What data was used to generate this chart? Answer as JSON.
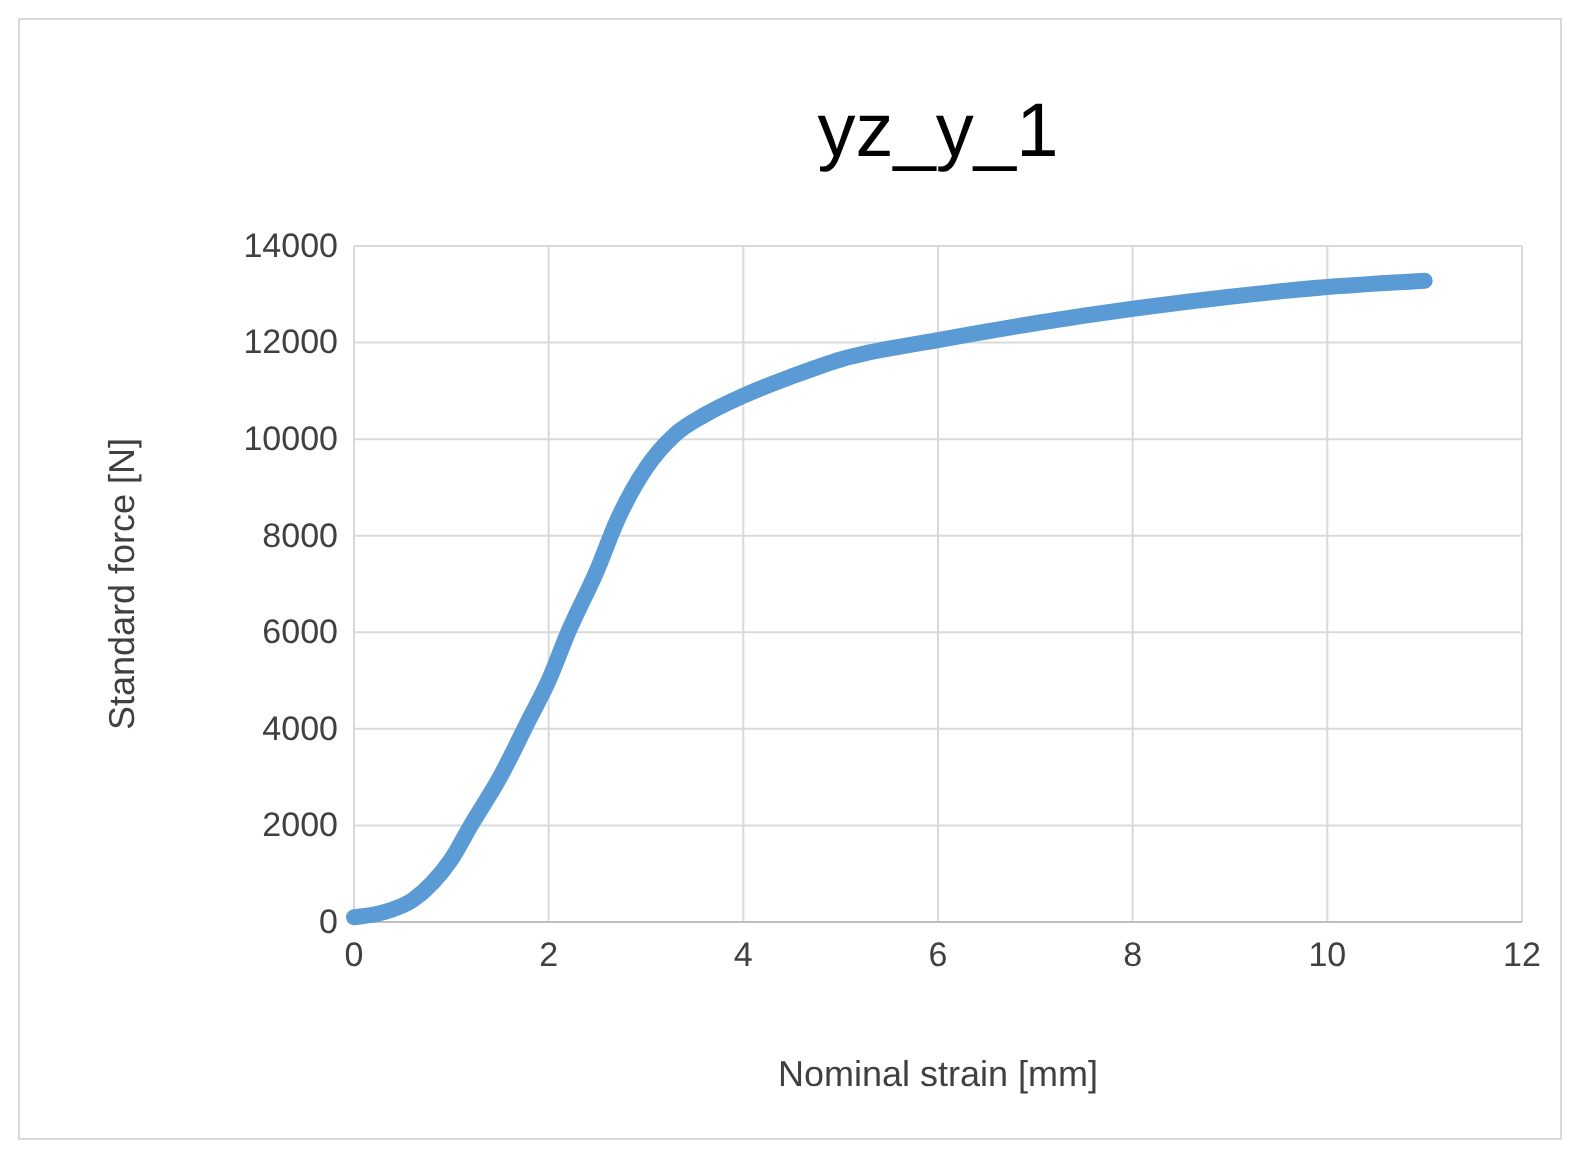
{
  "chart_data": {
    "type": "line",
    "title": "yz_y_1",
    "xlabel": "Nominal strain [mm]",
    "ylabel": "Standard force [N]",
    "x": [
      0,
      0.3,
      0.6,
      0.8,
      1,
      1.2,
      1.5,
      1.8,
      2,
      2.2,
      2.5,
      2.7,
      3,
      3.3,
      3.6,
      4,
      4.5,
      5,
      6,
      7,
      8,
      9,
      10,
      11
    ],
    "series": [
      {
        "color": "#5b9bd5",
        "values": [
          100,
          200,
          450,
          800,
          1300,
          2000,
          3000,
          4200,
          5000,
          6000,
          7300,
          8300,
          9400,
          10100,
          10500,
          10900,
          11300,
          11650,
          12050,
          12400,
          12700,
          12950,
          13150,
          13280
        ]
      }
    ],
    "xlim": [
      0,
      12
    ],
    "xticks": [
      0,
      2,
      4,
      6,
      8,
      10,
      12
    ],
    "ylim": [
      0,
      14000
    ],
    "yticks": [
      0,
      2000,
      4000,
      6000,
      8000,
      10000,
      12000,
      14000
    ],
    "grid": true,
    "marker": "none",
    "line_style": "solid"
  }
}
